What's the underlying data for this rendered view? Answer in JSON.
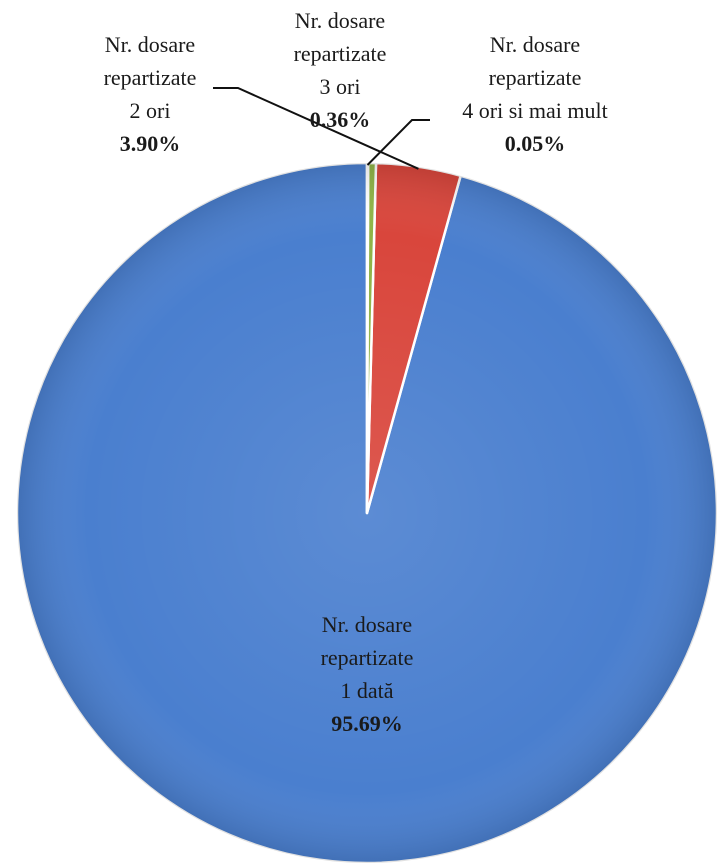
{
  "chart_data": {
    "type": "pie",
    "title": "",
    "slices": [
      {
        "name_lines": [
          "Nr. dosare",
          "repartizate",
          "1 dată"
        ],
        "value": 95.69,
        "value_label": "95.69%",
        "color": "#4a7fcf"
      },
      {
        "name_lines": [
          "Nr. dosare",
          "repartizate",
          "2 ori"
        ],
        "value": 3.9,
        "value_label": "3.90%",
        "color": "#d9463c"
      },
      {
        "name_lines": [
          "Nr. dosare",
          "repartizate",
          "3 ori"
        ],
        "value": 0.36,
        "value_label": "0.36%",
        "color": "#8fb447"
      },
      {
        "name_lines": [
          "Nr. dosare",
          "repartizate",
          "4 ori si mai mult"
        ],
        "value": 0.05,
        "value_label": "0.05%",
        "color": "#7a5fa8"
      }
    ],
    "start_angle_deg": 0,
    "direction": "counterclockwise",
    "legend": "none"
  }
}
